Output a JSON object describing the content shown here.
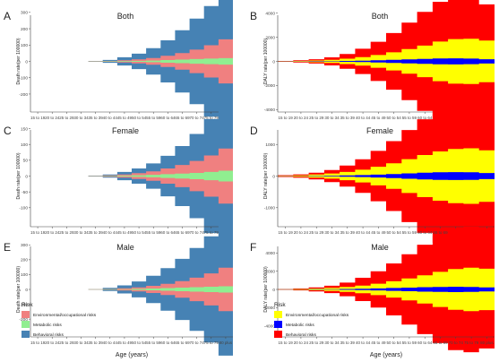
{
  "colors": {
    "left": {
      "Environmental/occupational risks": "#f08080",
      "Metabolic risks": "#90ee90",
      "Behavioral risks": "#4682b4"
    },
    "right": {
      "Environmental/occupational risks": "#ffff00",
      "Metabolic risks": "#0000ff",
      "Behavioral risks": "#ff0000"
    }
  },
  "legend": {
    "title": "Risk",
    "left_labels": [
      "Environmental/occupational risks",
      "Metabolic risks",
      "Behavioral risks"
    ],
    "right_labels": [
      "Environmental/occupational risks",
      "Metabolic risks",
      "Behavioral risks"
    ]
  },
  "chart_data": [
    {
      "panel_letter": "A",
      "type": "area",
      "title": "Both",
      "xlabel": "",
      "ylabel": "Death rate(per 100000)",
      "categories": [
        "15 to 19",
        "20 to 24",
        "25 to 29",
        "30 to 34",
        "35 to 39",
        "40 to 44",
        "45 to 49",
        "50 to 54",
        "55 to 59",
        "60 to 64",
        "65 to 69",
        "70 to 74",
        "75 to 79",
        "80 plus"
      ],
      "ylim": [
        -310,
        310
      ],
      "yticks": [
        -200,
        -100,
        0,
        100,
        200,
        300
      ],
      "series": [
        {
          "name": "Metabolic risks",
          "values": [
            0,
            0,
            0,
            0,
            0.5,
            1,
            2,
            3,
            5,
            8,
            11,
            14,
            17,
            20
          ]
        },
        {
          "name": "Environmental/occupational risks",
          "values": [
            0,
            0,
            0,
            0,
            0.5,
            2,
            5,
            9,
            16,
            26,
            40,
            58,
            82,
            115
          ]
        },
        {
          "name": "Behavioral risks",
          "values": [
            0,
            0,
            0,
            0,
            1,
            6,
            18,
            35,
            60,
            95,
            140,
            190,
            240,
            285
          ]
        }
      ]
    },
    {
      "panel_letter": "B",
      "type": "area",
      "title": "Both",
      "xlabel": "",
      "ylabel": "DALY rate(per 100000)",
      "categories": [
        "15 to 19",
        "20 to 24",
        "25 to 29",
        "30 to 34",
        "35 to 39",
        "40 to 44",
        "45 to 49",
        "50 to 54",
        "55 to 59",
        "60 to 64",
        "65 to 69",
        "70 to 74",
        "75 to 79",
        "80 plus"
      ],
      "ylim": [
        -4200,
        4200
      ],
      "yticks": [
        -4000,
        -2000,
        0,
        2000,
        4000
      ],
      "series": [
        {
          "name": "Metabolic risks",
          "values": [
            5,
            10,
            15,
            25,
            40,
            60,
            90,
            130,
            170,
            210,
            240,
            250,
            230,
            180
          ]
        },
        {
          "name": "Environmental/occupational risks",
          "values": [
            15,
            30,
            60,
            110,
            180,
            290,
            440,
            620,
            850,
            1100,
            1400,
            1600,
            1650,
            1550
          ]
        },
        {
          "name": "Behavioral risks",
          "values": [
            20,
            50,
            100,
            200,
            400,
            700,
            1100,
            1600,
            2200,
            2800,
            3300,
            3600,
            3500,
            3000
          ]
        }
      ]
    },
    {
      "panel_letter": "C",
      "type": "area",
      "title": "Female",
      "xlabel": "",
      "ylabel": "Death rate(per 100000)",
      "categories": [
        "15 to 19",
        "20 to 24",
        "25 to 29",
        "30 to 34",
        "35 to 39",
        "40 to 44",
        "45 to 49",
        "50 to 54",
        "55 to 59",
        "60 to 64",
        "65 to 69",
        "70 to 74",
        "75 to 79",
        "80 plus"
      ],
      "ylim": [
        -160,
        160
      ],
      "yticks": [
        -100,
        -50,
        0,
        50,
        100,
        150
      ],
      "series": [
        {
          "name": "Metabolic risks",
          "values": [
            0,
            0,
            0,
            0,
            0.3,
            0.7,
            1.5,
            2.5,
            4,
            6,
            8,
            10,
            13,
            17
          ]
        },
        {
          "name": "Environmental/occupational risks",
          "values": [
            0,
            0,
            0,
            0,
            0.5,
            1.5,
            3.5,
            6.5,
            11,
            18,
            27,
            38,
            52,
            70
          ]
        },
        {
          "name": "Behavioral risks",
          "values": [
            0,
            0,
            0,
            0,
            0.7,
            3,
            8,
            15,
            25,
            40,
            60,
            85,
            115,
            150
          ]
        }
      ]
    },
    {
      "panel_letter": "D",
      "type": "area",
      "title": "Female",
      "xlabel": "",
      "ylabel": "DALY rate(per 100000)",
      "categories": [
        "15 to 19",
        "20 to 24",
        "25 to 29",
        "30 to 34",
        "35 to 39",
        "40 to 44",
        "45 to 49",
        "50 to 54",
        "55 to 59",
        "60 to 64",
        "65 to 69",
        "70 to 74",
        "75 to 79",
        "80 plus"
      ],
      "ylim": [
        -1600,
        1600
      ],
      "yticks": [
        -1000,
        0,
        1000
      ],
      "series": [
        {
          "name": "Metabolic risks",
          "values": [
            2,
            4,
            7,
            12,
            20,
            30,
            45,
            65,
            85,
            105,
            120,
            125,
            118,
            95
          ]
        },
        {
          "name": "Environmental/occupational risks",
          "values": [
            10,
            20,
            40,
            70,
            110,
            170,
            250,
            340,
            450,
            560,
            660,
            730,
            760,
            720
          ]
        },
        {
          "name": "Behavioral risks",
          "values": [
            15,
            30,
            60,
            110,
            200,
            330,
            500,
            700,
            920,
            1130,
            1320,
            1460,
            1500,
            1420
          ]
        }
      ]
    },
    {
      "panel_letter": "E",
      "type": "area",
      "title": "Male",
      "xlabel": "Age (years)",
      "ylabel": "Death rate(per 100000)",
      "categories": [
        "15 to 19",
        "20 to 24",
        "25 to 29",
        "30 to 34",
        "35 to 39",
        "40 to 44",
        "45 to 49",
        "50 to 54",
        "55 to 59",
        "60 to 64",
        "65 to 69",
        "70 to 74",
        "75 to 79",
        "80 plus"
      ],
      "ylim": [
        -320,
        320
      ],
      "yticks": [
        -200,
        -100,
        0,
        100,
        200,
        300
      ],
      "series": [
        {
          "name": "Metabolic risks",
          "values": [
            0,
            0,
            0,
            0,
            0.5,
            1,
            2,
            3.5,
            6,
            9,
            12,
            15,
            18,
            21
          ]
        },
        {
          "name": "Environmental/occupational risks",
          "values": [
            0,
            0,
            0,
            0,
            0.5,
            2,
            5,
            10,
            18,
            29,
            44,
            64,
            90,
            125
          ]
        },
        {
          "name": "Behavioral risks",
          "values": [
            0,
            0,
            0,
            0,
            1,
            7,
            20,
            40,
            68,
            105,
            150,
            200,
            250,
            300
          ]
        }
      ]
    },
    {
      "panel_letter": "F",
      "type": "area",
      "title": "Male",
      "xlabel": "Age (years)",
      "ylabel": "DALY rate(per 100000)",
      "categories": [
        "15 to 19",
        "20 to 24",
        "25 to 29",
        "30 to 34",
        "35 to 39",
        "40 to 44",
        "45 to 49",
        "50 to 54",
        "55 to 59",
        "60 to 64",
        "65 to 69",
        "70 to 74",
        "75 to 79",
        "80 plus"
      ],
      "ylim": [
        -5200,
        5200
      ],
      "yticks": [
        -4000,
        -2000,
        0,
        2000,
        4000
      ],
      "series": [
        {
          "name": "Metabolic risks",
          "values": [
            6,
            12,
            20,
            32,
            50,
            75,
            110,
            155,
            200,
            245,
            275,
            290,
            275,
            220
          ]
        },
        {
          "name": "Environmental/occupational risks",
          "values": [
            20,
            40,
            75,
            135,
            220,
            350,
            520,
            740,
            1000,
            1300,
            1650,
            1950,
            2100,
            2050
          ]
        },
        {
          "name": "Behavioral risks",
          "values": [
            25,
            60,
            120,
            240,
            480,
            850,
            1350,
            1950,
            2650,
            3350,
            3950,
            4400,
            4500,
            4200
          ]
        }
      ]
    }
  ]
}
